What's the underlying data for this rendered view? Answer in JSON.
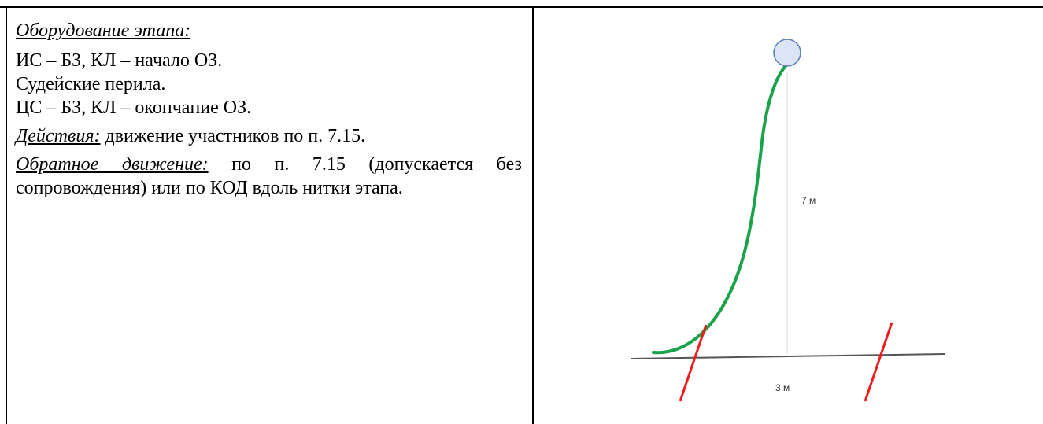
{
  "stage": {
    "equipment_label": "Оборудование этапа:",
    "equipment_lines": [
      "ИС – БЗ, КЛ – начало ОЗ.",
      "Судейские перила.",
      "ЦС – БЗ, КЛ – окончание ОЗ."
    ],
    "actions_label": "Действия:",
    "actions_text": " движение участников по п. 7.15.",
    "return_label": "Обратное движение:",
    "return_text": " по п. 7.15 (допускается без сопровождения) или по КОД вдоль нитки этапа."
  },
  "diagram": {
    "height_label": "7 м",
    "width_label": "3 м",
    "colors": {
      "rope": "#1aa34a",
      "control_lines": "#ee1c1c",
      "ground": "#555555",
      "guide": "#d9d9d9",
      "point_fill": "#dbe5f5",
      "point_stroke": "#5b7fb5"
    }
  }
}
